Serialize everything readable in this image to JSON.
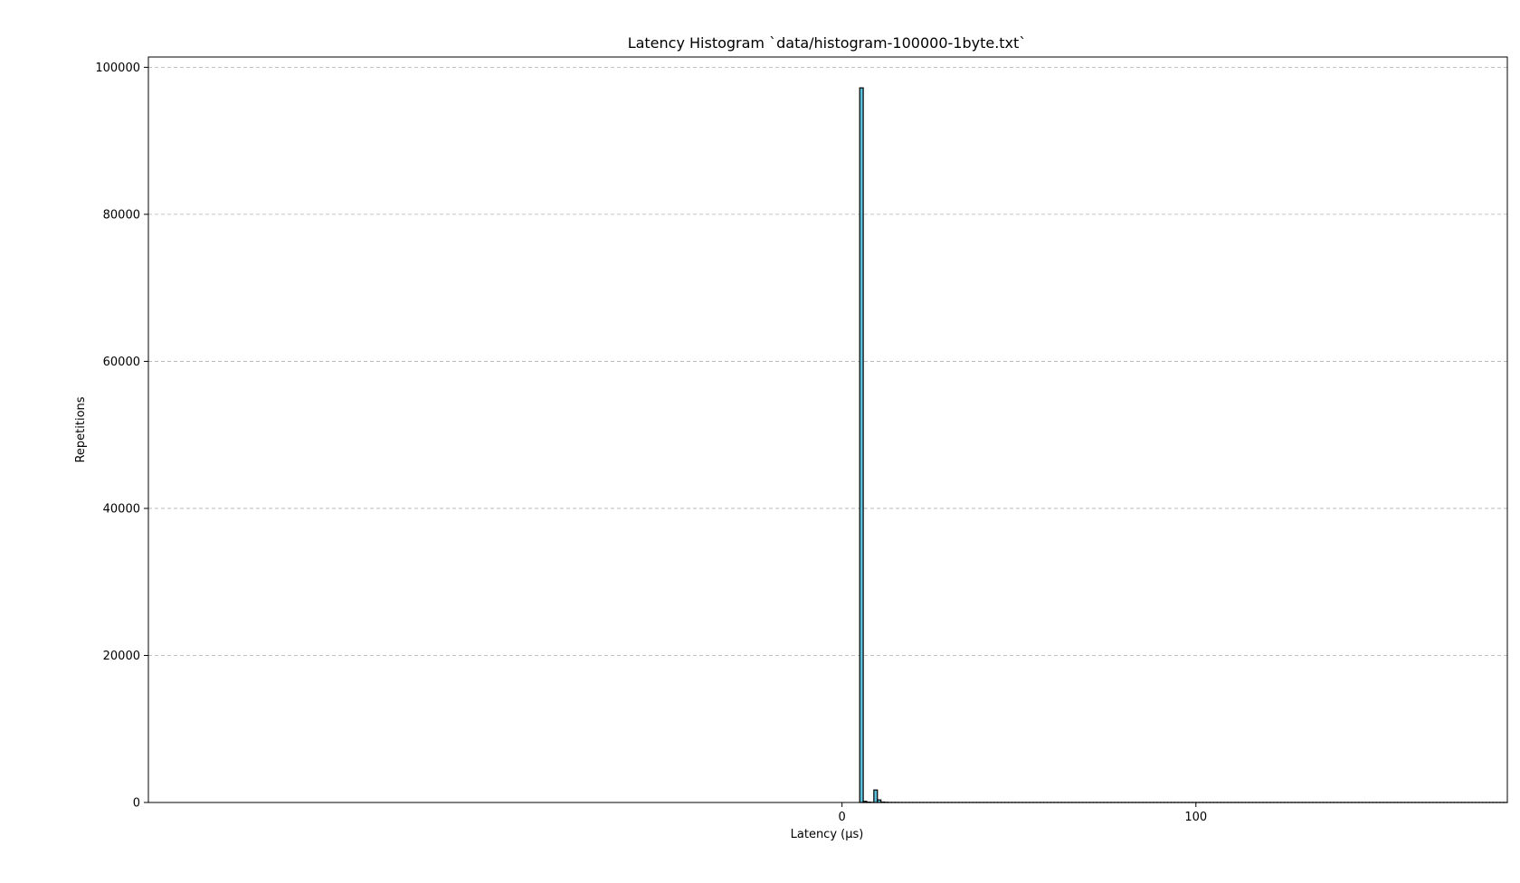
{
  "chart_data": {
    "type": "bar",
    "title": "Latency Histogram `data/histogram-100000-1byte.txt`",
    "xlabel": "Latency (µs)",
    "ylabel": "Repetitions",
    "xlim": [
      -196,
      188
    ],
    "ylim": [
      0,
      101400
    ],
    "xticks": [
      0,
      100
    ],
    "yticks": [
      0,
      20000,
      40000,
      60000,
      80000,
      100000
    ],
    "grid": "y-dashed",
    "bin_width": 1,
    "bar_fill": "#5bc0de",
    "bar_edge": "#000000",
    "series": [
      {
        "x": [
          5,
          6,
          7,
          8,
          9,
          10,
          11,
          12,
          13,
          14,
          15,
          16,
          17,
          18,
          19,
          20,
          21,
          22,
          23,
          24,
          25,
          26,
          27,
          28,
          29,
          30,
          31,
          32,
          33,
          34,
          35,
          36,
          37,
          38,
          39,
          40,
          41,
          42,
          43,
          44,
          45,
          46,
          47,
          48,
          49,
          50,
          51,
          52,
          53,
          54,
          55,
          56,
          57,
          58,
          59,
          60,
          61,
          62,
          63,
          64,
          65,
          66,
          67,
          68,
          69,
          70,
          71,
          72,
          73,
          74,
          75,
          76,
          77,
          78,
          79,
          80,
          81,
          82,
          83,
          84,
          85,
          86,
          87,
          88,
          89,
          90,
          91,
          92,
          93,
          94,
          95,
          96,
          97,
          98,
          99,
          100,
          101,
          102,
          103,
          104,
          105,
          106,
          107,
          108,
          109,
          110,
          111,
          112,
          113,
          114,
          115,
          116,
          117,
          118,
          119,
          120,
          121,
          122,
          123,
          124,
          125,
          126,
          127,
          128,
          129,
          130,
          131,
          132,
          133,
          134,
          135,
          136,
          137,
          138,
          139,
          140,
          141,
          142,
          143,
          144,
          145,
          146,
          147,
          148,
          149,
          150,
          151,
          152,
          153,
          154,
          155,
          156,
          157,
          158,
          159,
          160,
          161,
          162,
          163,
          164,
          165,
          166,
          167,
          168,
          169,
          170,
          171,
          172,
          173,
          174,
          175,
          176,
          177,
          178,
          179,
          180,
          181,
          182,
          183,
          184,
          185,
          186,
          187
        ],
        "values": [
          97200,
          150,
          50,
          20,
          1700,
          350,
          60,
          30,
          10,
          10,
          10,
          5,
          5,
          5,
          5,
          5,
          5,
          5,
          5,
          5,
          5,
          5,
          5,
          5,
          5,
          5,
          5,
          5,
          5,
          5,
          5,
          5,
          5,
          5,
          5,
          5,
          5,
          5,
          5,
          5,
          5,
          5,
          5,
          5,
          5,
          5,
          5,
          5,
          5,
          5,
          5,
          5,
          5,
          5,
          5,
          5,
          5,
          5,
          5,
          5,
          5,
          5,
          5,
          5,
          5,
          5,
          5,
          5,
          5,
          5,
          5,
          5,
          5,
          5,
          5,
          5,
          5,
          5,
          5,
          5,
          5,
          5,
          5,
          5,
          5,
          5,
          5,
          5,
          5,
          5,
          5,
          5,
          5,
          5,
          5,
          5,
          5,
          5,
          5,
          5,
          5,
          5,
          5,
          5,
          5,
          5,
          5,
          5,
          5,
          5,
          5,
          5,
          5,
          5,
          5,
          5,
          5,
          5,
          5,
          5,
          5,
          5,
          5,
          5,
          5,
          5,
          5,
          5,
          5,
          5,
          5,
          5,
          5,
          5,
          5,
          5,
          5,
          5,
          5,
          5,
          5,
          5,
          5,
          5,
          5,
          5,
          5,
          5,
          5,
          5,
          5,
          5,
          5,
          5,
          5,
          5,
          5,
          5,
          5,
          5,
          5,
          5,
          5,
          5,
          5,
          5,
          5,
          5,
          5,
          5,
          5,
          5,
          5,
          5,
          5,
          5,
          5,
          5,
          5,
          5,
          5,
          5,
          5
        ]
      }
    ]
  }
}
